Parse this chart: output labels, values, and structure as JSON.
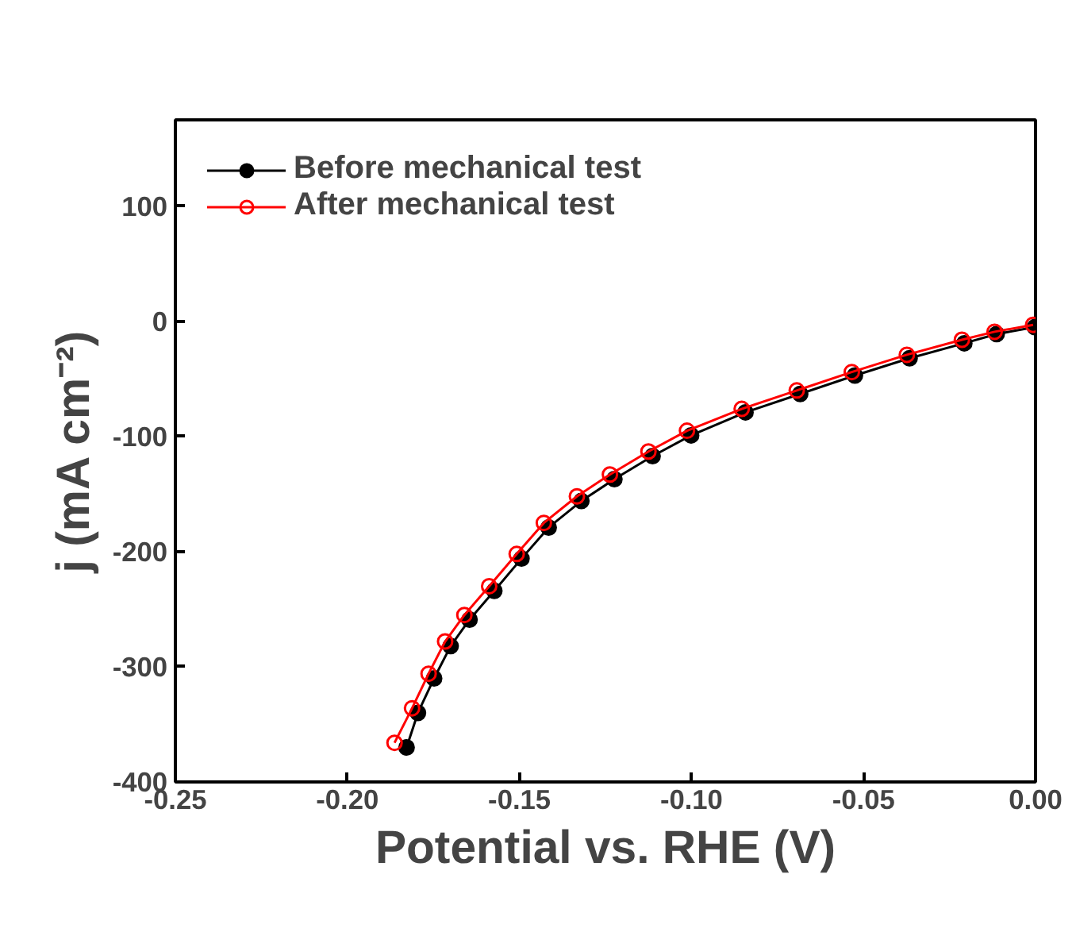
{
  "chart_data": {
    "type": "line",
    "xlabel": "Potential vs. RHE (V)",
    "ylabel": "j (mA cm⁻²)",
    "xlim": [
      -0.25,
      0.0
    ],
    "xticks": [
      {
        "value": -0.25,
        "label": "-0.25"
      },
      {
        "value": -0.2,
        "label": "-0.20"
      },
      {
        "value": -0.15,
        "label": "-0.15"
      },
      {
        "value": -0.1,
        "label": "-0.10"
      },
      {
        "value": -0.05,
        "label": "-0.05"
      },
      {
        "value": 0.0,
        "label": "0.00"
      }
    ],
    "ylim": [
      -400,
      175
    ],
    "yticks": [
      -400,
      -300,
      -200,
      -100,
      0,
      100
    ],
    "grid": false,
    "legend": "top left",
    "marker": "circle",
    "series": [
      {
        "name": "Before mechanical test",
        "color": "#000000",
        "x": [
          -0.1828,
          -0.1795,
          -0.1748,
          -0.17,
          -0.1645,
          -0.1573,
          -0.1494,
          -0.1415,
          -0.132,
          -0.1224,
          -0.1113,
          -0.1001,
          -0.0843,
          -0.0684,
          -0.0525,
          -0.0366,
          -0.0207,
          -0.0113,
          -0.0002
        ],
        "values": [
          -370,
          -340,
          -310,
          -282,
          -259,
          -234,
          -206,
          -179,
          -156,
          -137,
          -117,
          -99,
          -79,
          -63,
          -47,
          -32,
          -19,
          -11,
          -5
        ]
      },
      {
        "name": "After mechanical test",
        "color": "#ff0000",
        "x": [
          -0.1863,
          -0.1812,
          -0.1764,
          -0.1716,
          -0.166,
          -0.1588,
          -0.1508,
          -0.1429,
          -0.1333,
          -0.1237,
          -0.1125,
          -0.1013,
          -0.0854,
          -0.0694,
          -0.0534,
          -0.0374,
          -0.0214,
          -0.0119,
          -0.0007
        ],
        "values": [
          -366,
          -336,
          -306,
          -278,
          -255,
          -230,
          -202,
          -175,
          -152,
          -133,
          -113,
          -95,
          -76,
          -60,
          -44,
          -29,
          -16,
          -9,
          -3
        ]
      }
    ]
  }
}
